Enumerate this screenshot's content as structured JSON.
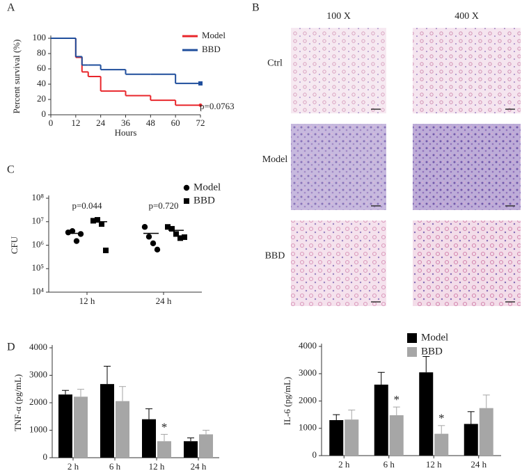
{
  "chart_data": [
    {
      "type": "step",
      "panel": "A",
      "x": [
        0,
        12,
        15,
        18,
        24,
        36,
        48,
        60,
        72
      ],
      "series": [
        {
          "name": "Model",
          "color": "#e8262b",
          "values": [
            100,
            75,
            56,
            50,
            31,
            25,
            19,
            12.5,
            12.5
          ]
        },
        {
          "name": "BBD",
          "color": "#1f4e9c",
          "values": [
            100,
            76,
            65,
            65,
            59,
            53,
            53,
            41,
            41
          ]
        }
      ],
      "xlim": [
        0,
        72
      ],
      "xticks": [
        0,
        12,
        24,
        36,
        48,
        60,
        72
      ],
      "ylim": [
        0,
        100
      ],
      "yticks": [
        0,
        20,
        40,
        60,
        80,
        100
      ],
      "x_label": "Hours",
      "y_label": "Percent survival (%)",
      "annotation": "p=0.0763"
    },
    {
      "type": "images",
      "panel": "B",
      "columns": [
        "100 X",
        "400 X"
      ],
      "rows": [
        "Ctrl",
        "Model",
        "BBD"
      ]
    },
    {
      "type": "scatter",
      "panel": "C",
      "log_scale": true,
      "categories": [
        "12 h",
        "24 h"
      ],
      "series": [
        {
          "name": "Model",
          "color": "#000000",
          "marker": "circle",
          "values": [
            [
              3500000,
              4000000,
              1500000,
              3000000
            ],
            [
              6000000,
              2300000,
              1200000,
              650000
            ]
          ],
          "means": [
            3200000,
            3200000
          ]
        },
        {
          "name": "BBD",
          "color": "#000000",
          "marker": "square",
          "values": [
            [
              11000000,
              12000000,
              8000000,
              600000
            ],
            [
              6000000,
              5000000,
              3000000,
              2000000,
              2200000
            ]
          ],
          "means": [
            10000000,
            4300000
          ]
        }
      ],
      "p_values": [
        "p=0.044",
        "p=0.720"
      ],
      "ylim": [
        10000,
        100000000
      ],
      "yticks": [
        {
          "value": 10000,
          "label": "10⁴"
        },
        {
          "value": 100000,
          "label": "10⁵"
        },
        {
          "value": 1000000,
          "label": "10⁶"
        },
        {
          "value": 10000000,
          "label": "10⁷"
        },
        {
          "value": 100000000,
          "label": "10⁸"
        }
      ],
      "y_label": "CFU"
    },
    {
      "type": "bar",
      "panel": "D",
      "categories": [
        "2 h",
        "6 h",
        "12 h",
        "24 h"
      ],
      "series": [
        {
          "name": "Model",
          "color": "#000000",
          "values": [
            2300,
            2680,
            1400,
            600
          ],
          "errors": [
            150,
            650,
            380,
            120
          ],
          "marks": [
            null,
            null,
            null,
            null
          ]
        },
        {
          "name": "BBD",
          "color": "#a6a6a6",
          "values": [
            2220,
            2060,
            600,
            850
          ],
          "errors": [
            270,
            530,
            250,
            150
          ],
          "marks": [
            null,
            null,
            "*",
            null
          ]
        }
      ],
      "ylim": [
        0,
        4000
      ],
      "yticks": [
        0,
        1000,
        2000,
        3000,
        4000
      ],
      "y_label": "TNF-α (pg/mL)"
    },
    {
      "type": "bar",
      "categories": [
        "2 h",
        "6 h",
        "12 h",
        "24 h"
      ],
      "legend": "top-right",
      "series": [
        {
          "name": "Model",
          "color": "#000000",
          "values": [
            1300,
            2600,
            3050,
            1160
          ],
          "errors": [
            200,
            450,
            580,
            450
          ],
          "marks": [
            null,
            null,
            null,
            null
          ]
        },
        {
          "name": "BBD",
          "color": "#a6a6a6",
          "values": [
            1320,
            1480,
            800,
            1740
          ],
          "errors": [
            350,
            300,
            300,
            480
          ],
          "marks": [
            null,
            "*",
            "*",
            null
          ]
        }
      ],
      "ylim": [
        0,
        4000
      ],
      "yticks": [
        0,
        1000,
        2000,
        3000,
        4000
      ],
      "y_label": "IL-6 (pg/mL)"
    }
  ]
}
